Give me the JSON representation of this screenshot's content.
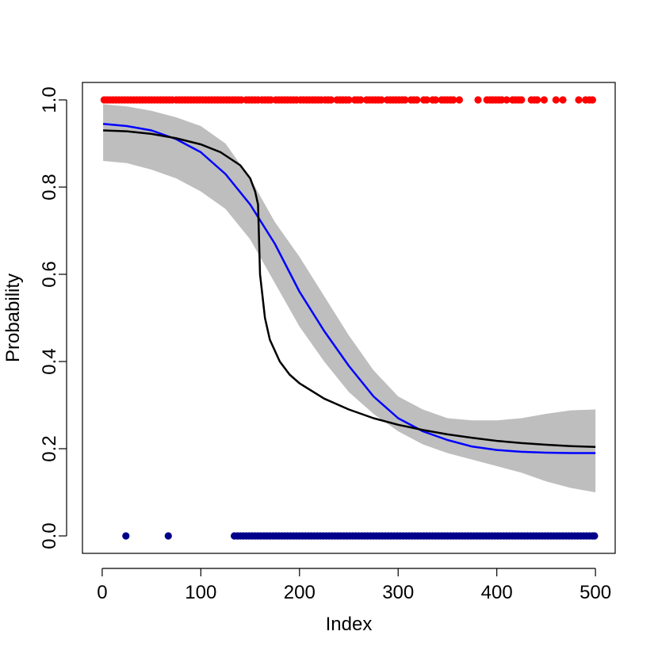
{
  "chart_data": {
    "type": "scatter",
    "title": "",
    "xlabel": "Index",
    "ylabel": "Probability",
    "xlim": [
      -20,
      520
    ],
    "ylim": [
      -0.04,
      1.04
    ],
    "xticks": [
      0,
      100,
      200,
      300,
      400,
      500
    ],
    "xtick_labels": [
      "0",
      "100",
      "200",
      "300",
      "400",
      "500"
    ],
    "yticks": [
      0.0,
      0.2,
      0.4,
      0.6,
      0.8,
      1.0
    ],
    "ytick_labels": [
      "0.0",
      "0.2",
      "0.4",
      "0.6",
      "0.8",
      "1.0"
    ],
    "grid": false,
    "colors": {
      "ones_points": "#ff0000",
      "zeros_points": "#00008b",
      "band": "#bebebe",
      "blue_curve": "#0000ff",
      "black_curve": "#000000"
    },
    "confidence_band": {
      "x": [
        1,
        25,
        50,
        75,
        100,
        125,
        150,
        175,
        200,
        225,
        250,
        275,
        300,
        325,
        350,
        375,
        400,
        425,
        450,
        475,
        500
      ],
      "lower": [
        0.86,
        0.855,
        0.84,
        0.82,
        0.79,
        0.75,
        0.68,
        0.58,
        0.48,
        0.4,
        0.33,
        0.28,
        0.24,
        0.21,
        0.19,
        0.175,
        0.16,
        0.145,
        0.125,
        0.11,
        0.1
      ],
      "upper": [
        0.99,
        0.985,
        0.975,
        0.96,
        0.94,
        0.9,
        0.82,
        0.72,
        0.64,
        0.55,
        0.46,
        0.38,
        0.32,
        0.29,
        0.27,
        0.265,
        0.265,
        0.27,
        0.28,
        0.288,
        0.29
      ]
    },
    "series": [
      {
        "style": "line",
        "x": [
          1,
          25,
          50,
          75,
          100,
          125,
          150,
          175,
          200,
          225,
          250,
          275,
          300,
          325,
          350,
          375,
          400,
          425,
          450,
          475,
          500
        ],
        "y": [
          0.945,
          0.94,
          0.93,
          0.91,
          0.88,
          0.83,
          0.76,
          0.67,
          0.56,
          0.47,
          0.39,
          0.32,
          0.27,
          0.24,
          0.22,
          0.205,
          0.197,
          0.193,
          0.191,
          0.19,
          0.19
        ]
      },
      {
        "style": "line",
        "x": [
          1,
          25,
          50,
          75,
          100,
          120,
          140,
          150,
          155,
          158,
          160,
          162,
          165,
          170,
          180,
          190,
          200,
          225,
          250,
          275,
          300,
          325,
          350,
          375,
          400,
          425,
          450,
          475,
          500
        ],
        "y": [
          0.93,
          0.928,
          0.922,
          0.912,
          0.898,
          0.88,
          0.85,
          0.82,
          0.79,
          0.76,
          0.6,
          0.56,
          0.5,
          0.45,
          0.4,
          0.37,
          0.35,
          0.315,
          0.29,
          0.27,
          0.255,
          0.243,
          0.233,
          0.225,
          0.218,
          0.213,
          0.209,
          0.206,
          0.204
        ]
      },
      {
        "style": "points",
        "y": 1,
        "x": [
          2,
          5,
          8,
          11,
          14,
          17,
          20,
          23,
          26,
          29,
          32,
          35,
          38,
          41,
          44,
          47,
          50,
          53,
          56,
          59,
          62,
          65,
          68,
          71,
          75,
          78,
          81,
          84,
          87,
          90,
          93,
          96,
          99,
          102,
          105,
          108,
          111,
          114,
          117,
          120,
          123,
          126,
          129,
          132,
          135,
          138,
          141,
          146,
          149,
          152,
          155,
          158,
          162,
          165,
          168,
          171,
          176,
          179,
          182,
          185,
          188,
          191,
          194,
          197,
          201,
          204,
          207,
          210,
          213,
          216,
          219,
          222,
          226,
          229,
          232,
          238,
          241,
          244,
          247,
          250,
          256,
          259,
          262,
          268,
          271,
          274,
          277,
          280,
          283,
          289,
          292,
          295,
          298,
          301,
          304,
          307,
          313,
          316,
          319,
          326,
          329,
          335,
          338,
          344,
          347,
          350,
          353,
          356,
          362,
          381,
          390,
          393,
          396,
          399,
          402,
          405,
          410,
          416,
          419,
          422,
          425,
          435,
          438,
          441,
          448,
          460,
          467,
          483,
          490,
          494,
          497
        ]
      },
      {
        "style": "points",
        "y": 0,
        "x": [
          24,
          67,
          134,
          137,
          140,
          143,
          146,
          149,
          152,
          155,
          158,
          161,
          164,
          167,
          170,
          173,
          176,
          179,
          182,
          185,
          188,
          191,
          194,
          197,
          200,
          203,
          206,
          209,
          212,
          215,
          218,
          221,
          224,
          227,
          230,
          233,
          236,
          239,
          242,
          245,
          248,
          251,
          254,
          257,
          260,
          263,
          266,
          269,
          272,
          275,
          278,
          281,
          284,
          287,
          290,
          293,
          296,
          299,
          302,
          305,
          308,
          311,
          314,
          317,
          320,
          323,
          326,
          329,
          332,
          335,
          338,
          341,
          344,
          347,
          350,
          353,
          356,
          359,
          362,
          365,
          368,
          371,
          374,
          377,
          380,
          383,
          386,
          389,
          392,
          395,
          398,
          401,
          404,
          407,
          410,
          413,
          416,
          419,
          422,
          425,
          428,
          431,
          434,
          437,
          440,
          443,
          446,
          449,
          452,
          455,
          458,
          461,
          464,
          467,
          470,
          473,
          476,
          479,
          482,
          485,
          488,
          491,
          494,
          497,
          499
        ]
      }
    ]
  }
}
